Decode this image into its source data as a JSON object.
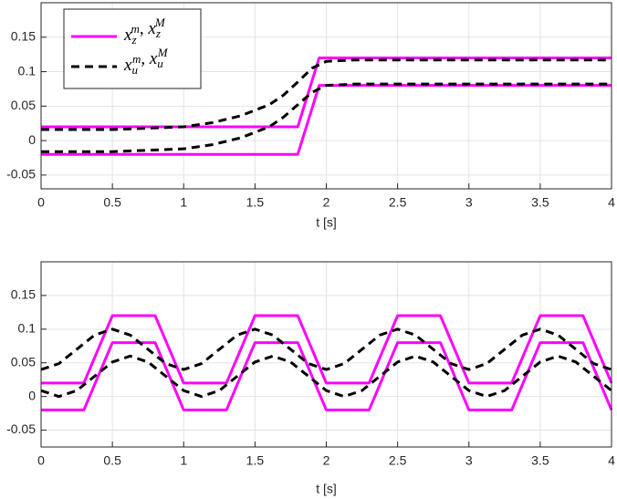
{
  "chart_data": [
    {
      "type": "line",
      "xlabel": "t [s]",
      "xlim": [
        0,
        4
      ],
      "ylim": [
        -0.07,
        0.2
      ],
      "xticks": [
        0,
        0.5,
        1,
        1.5,
        2,
        2.5,
        3,
        3.5,
        4
      ],
      "yticks": [
        -0.05,
        0,
        0.05,
        0.1,
        0.15
      ],
      "grid": true,
      "legend": "upper left",
      "series": [
        {
          "name": "x_z^m, x_z^M",
          "color": "#ff00ff",
          "dash": false,
          "lines": [
            {
              "x": [
                0,
                1.8,
                1.95,
                4
              ],
              "values": [
                0.02,
                0.02,
                0.12,
                0.12
              ]
            },
            {
              "x": [
                0,
                1.8,
                1.95,
                4
              ],
              "values": [
                -0.02,
                -0.02,
                0.08,
                0.08
              ]
            }
          ]
        },
        {
          "name": "x_u^m, x_u^M",
          "color": "#000000",
          "dash": true,
          "lines": [
            {
              "x": [
                0,
                0.5,
                1,
                1.2,
                1.4,
                1.6,
                1.7,
                1.8,
                1.9,
                2,
                2.2,
                4
              ],
              "values": [
                0.016,
                0.016,
                0.02,
                0.026,
                0.036,
                0.052,
                0.066,
                0.085,
                0.105,
                0.115,
                0.117,
                0.117
              ]
            },
            {
              "x": [
                0,
                0.5,
                1,
                1.2,
                1.4,
                1.6,
                1.7,
                1.8,
                1.9,
                2,
                2.2,
                4
              ],
              "values": [
                -0.016,
                -0.016,
                -0.012,
                -0.006,
                0.004,
                0.02,
                0.034,
                0.052,
                0.07,
                0.08,
                0.082,
                0.082
              ]
            }
          ]
        }
      ]
    },
    {
      "type": "line",
      "xlabel": "t [s]",
      "xlim": [
        0,
        4
      ],
      "ylim": [
        -0.075,
        0.2
      ],
      "xticks": [
        0,
        0.5,
        1,
        1.5,
        2,
        2.5,
        3,
        3.5,
        4
      ],
      "yticks": [
        -0.05,
        0,
        0.05,
        0.1,
        0.15
      ],
      "grid": true,
      "series": [
        {
          "color": "#ff00ff",
          "dash": false,
          "lines": [
            {
              "x": [
                0,
                0.3,
                0.5,
                0.8,
                1,
                1.3,
                1.5,
                1.8,
                2,
                2.3,
                2.5,
                2.8,
                3,
                3.3,
                3.5,
                3.8,
                4
              ],
              "values": [
                0.02,
                0.02,
                0.12,
                0.12,
                0.02,
                0.02,
                0.12,
                0.12,
                0.02,
                0.02,
                0.12,
                0.12,
                0.02,
                0.02,
                0.12,
                0.12,
                0.02
              ]
            },
            {
              "x": [
                0,
                0.3,
                0.5,
                0.8,
                1,
                1.3,
                1.5,
                1.8,
                2,
                2.3,
                2.5,
                2.8,
                3,
                3.3,
                3.5,
                3.8,
                4
              ],
              "values": [
                -0.02,
                -0.02,
                0.08,
                0.08,
                -0.02,
                -0.02,
                0.08,
                0.08,
                -0.02,
                -0.02,
                0.08,
                0.08,
                -0.02,
                -0.02,
                0.08,
                0.08,
                -0.02
              ]
            }
          ]
        },
        {
          "color": "#000000",
          "dash": true,
          "lines": [
            {
              "x": [
                0,
                0.125,
                0.25,
                0.375,
                0.5,
                0.625,
                0.75,
                0.875,
                1,
                1.125,
                1.25,
                1.375,
                1.5,
                1.625,
                1.75,
                1.875,
                2,
                2.125,
                2.25,
                2.375,
                2.5,
                2.625,
                2.75,
                2.875,
                3,
                3.125,
                3.25,
                3.375,
                3.5,
                3.625,
                3.75,
                3.875,
                4
              ],
              "values": [
                0.04,
                0.0488,
                0.07,
                0.0912,
                0.1,
                0.0912,
                0.07,
                0.0488,
                0.04,
                0.0488,
                0.07,
                0.0912,
                0.1,
                0.0912,
                0.07,
                0.0488,
                0.04,
                0.0488,
                0.07,
                0.0912,
                0.1,
                0.0912,
                0.07,
                0.0488,
                0.04,
                0.0488,
                0.07,
                0.0912,
                0.1,
                0.0912,
                0.07,
                0.0488,
                0.04
              ]
            },
            {
              "x": [
                0,
                0.125,
                0.25,
                0.375,
                0.5,
                0.625,
                0.75,
                0.875,
                1,
                1.125,
                1.25,
                1.375,
                1.5,
                1.625,
                1.75,
                1.875,
                2,
                2.125,
                2.25,
                2.375,
                2.5,
                2.625,
                2.75,
                2.875,
                3,
                3.125,
                3.25,
                3.375,
                3.5,
                3.625,
                3.75,
                3.875,
                4
              ],
              "values": [
                0.0088,
                0,
                0.0088,
                0.03,
                0.0512,
                0.06,
                0.0512,
                0.03,
                0.0088,
                0,
                0.0088,
                0.03,
                0.0512,
                0.06,
                0.0512,
                0.03,
                0.0088,
                0,
                0.0088,
                0.03,
                0.0512,
                0.06,
                0.0512,
                0.03,
                0.0088,
                0,
                0.0088,
                0.03,
                0.0512,
                0.06,
                0.0512,
                0.03,
                0.0088
              ]
            }
          ]
        }
      ]
    }
  ]
}
